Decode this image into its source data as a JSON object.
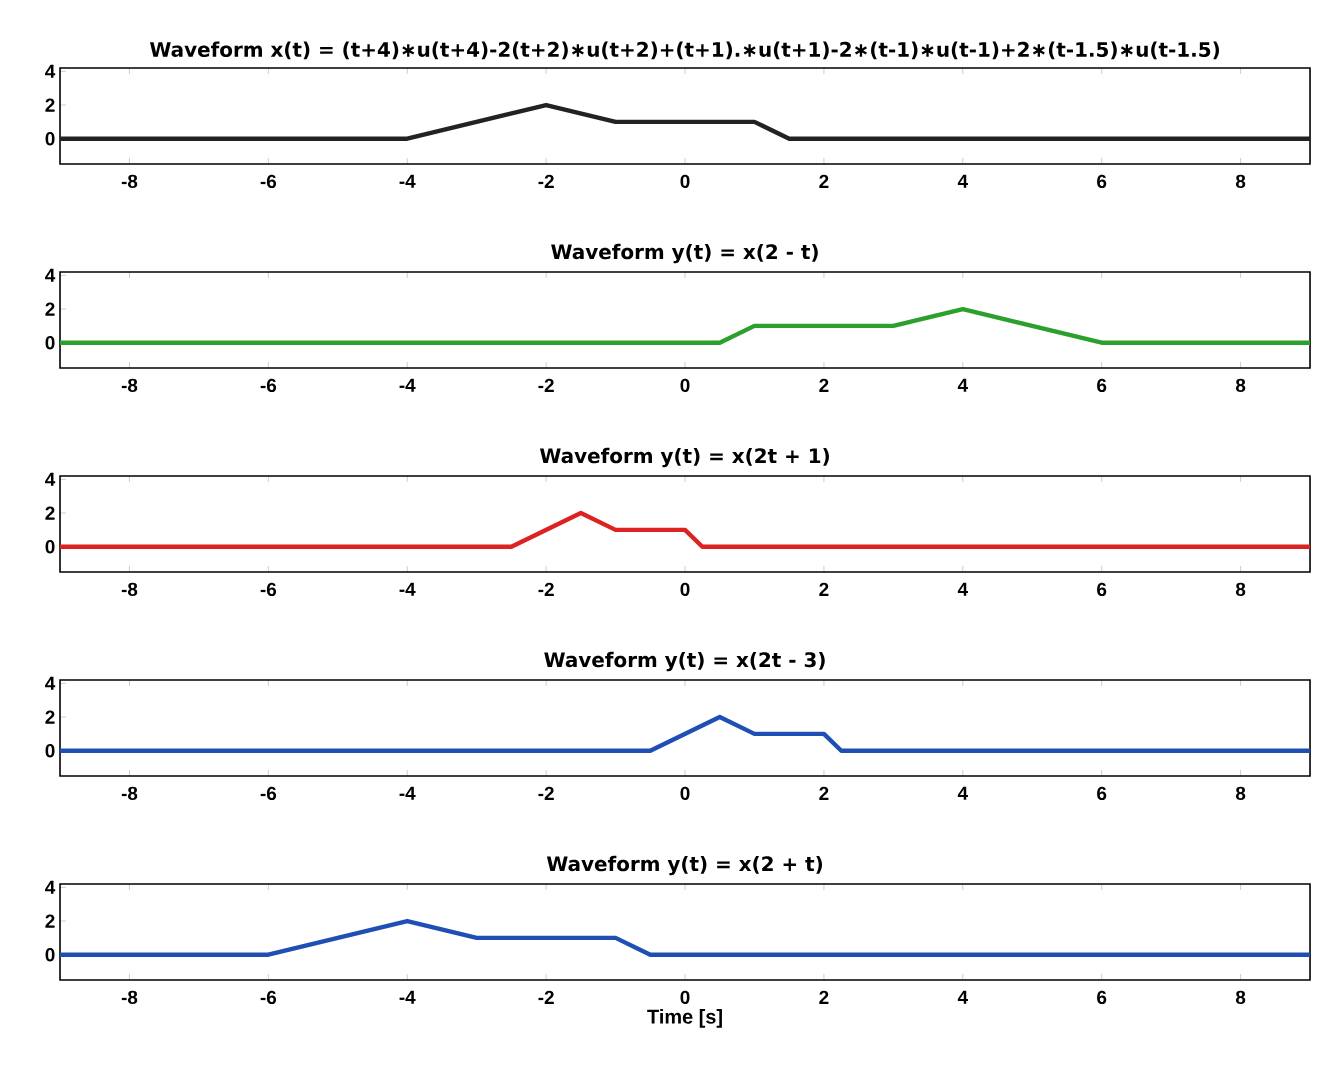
{
  "chart_data": [
    {
      "type": "line",
      "title": "Waveform x(t) = (t+4)∗u(t+4)-2(t+2)∗u(t+2)+(t+1).∗u(t+1)-2∗(t-1)∗u(t-1)+2∗(t-1.5)∗u(t-1.5)",
      "x": [
        -9,
        -4,
        -2,
        -1,
        1,
        1.5,
        9
      ],
      "series": [
        {
          "color": "#222222",
          "values": [
            0,
            0,
            2,
            1,
            1,
            0,
            0
          ]
        }
      ],
      "xlim": [
        -9,
        9
      ],
      "ylim": [
        -1.5,
        4.2
      ],
      "xticks": [
        -8,
        -6,
        -4,
        -2,
        0,
        2,
        4,
        6,
        8
      ],
      "yticks": [
        0,
        2,
        4
      ],
      "grid": false,
      "marker": "none",
      "line_style": "solid"
    },
    {
      "type": "line",
      "title": "Waveform y(t) = x(2 - t)",
      "x": [
        -9,
        0.5,
        1,
        3,
        4,
        6,
        9
      ],
      "series": [
        {
          "color": "#2ca02c",
          "values": [
            0,
            0,
            1,
            1,
            2,
            0,
            0
          ]
        }
      ],
      "xlim": [
        -9,
        9
      ],
      "ylim": [
        -1.5,
        4.2
      ],
      "xticks": [
        -8,
        -6,
        -4,
        -2,
        0,
        2,
        4,
        6,
        8
      ],
      "yticks": [
        0,
        2,
        4
      ],
      "grid": false,
      "marker": "none",
      "line_style": "solid"
    },
    {
      "type": "line",
      "title": "Waveform y(t) = x(2t + 1)",
      "x": [
        -9,
        -2.5,
        -1.5,
        -1,
        0,
        0.25,
        9
      ],
      "series": [
        {
          "color": "#dd2222",
          "values": [
            0,
            0,
            2,
            1,
            1,
            0,
            0
          ]
        }
      ],
      "xlim": [
        -9,
        9
      ],
      "ylim": [
        -1.5,
        4.2
      ],
      "xticks": [
        -8,
        -6,
        -4,
        -2,
        0,
        2,
        4,
        6,
        8
      ],
      "yticks": [
        0,
        2,
        4
      ],
      "grid": false,
      "marker": "none",
      "line_style": "solid"
    },
    {
      "type": "line",
      "title": "Waveform y(t) = x(2t - 3)",
      "x": [
        -9,
        -0.5,
        0.5,
        1,
        2,
        2.25,
        9
      ],
      "series": [
        {
          "color": "#1f4fb4",
          "values": [
            0,
            0,
            2,
            1,
            1,
            0,
            0
          ]
        }
      ],
      "xlim": [
        -9,
        9
      ],
      "ylim": [
        -1.5,
        4.2
      ],
      "xticks": [
        -8,
        -6,
        -4,
        -2,
        0,
        2,
        4,
        6,
        8
      ],
      "yticks": [
        0,
        2,
        4
      ],
      "grid": false,
      "marker": "none",
      "line_style": "solid"
    },
    {
      "type": "line",
      "title": "Waveform y(t) = x(2 + t)",
      "xlabel": "Time [s]",
      "x": [
        -9,
        -6,
        -4,
        -3,
        -1,
        -0.5,
        9
      ],
      "series": [
        {
          "color": "#1f4fb4",
          "values": [
            0,
            0,
            2,
            1,
            1,
            0,
            0
          ]
        }
      ],
      "xlim": [
        -9,
        9
      ],
      "ylim": [
        -1.5,
        4.2
      ],
      "xticks": [
        -8,
        -6,
        -4,
        -2,
        0,
        2,
        4,
        6,
        8
      ],
      "yticks": [
        0,
        2,
        4
      ],
      "grid": false,
      "marker": "none",
      "line_style": "solid"
    }
  ]
}
